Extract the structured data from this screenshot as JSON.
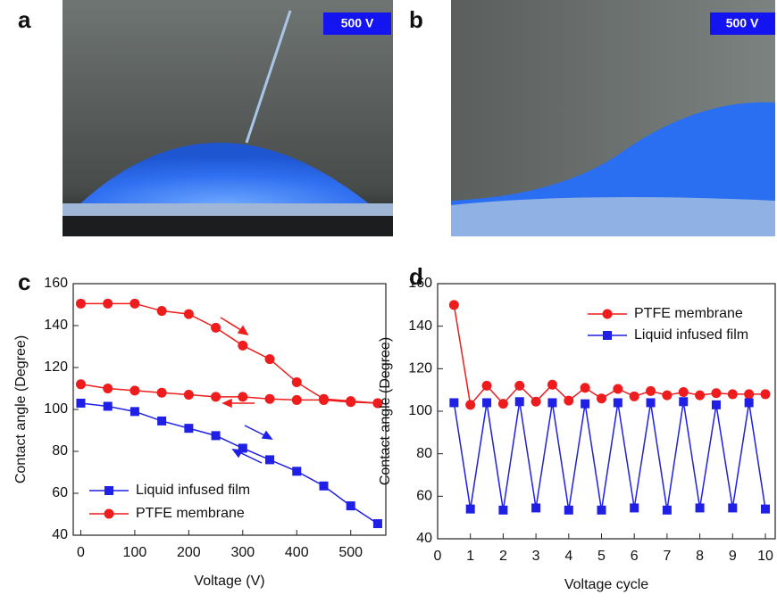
{
  "images": [
    {
      "label": "a",
      "badge": "500 V"
    },
    {
      "label": "b",
      "badge": "500 V"
    }
  ],
  "chart_data": [
    {
      "type": "line",
      "panel_label": "c",
      "x_label": "Voltage (V)",
      "y_label": "Contact angle (Degree)",
      "xlim": [
        -14,
        565
      ],
      "xticks": [
        0,
        100,
        200,
        300,
        400,
        500
      ],
      "ylim": [
        40,
        160
      ],
      "yticks": [
        40,
        60,
        80,
        100,
        120,
        140,
        160
      ],
      "legend": "lower left",
      "series": [
        {
          "name": "Liquid infused film",
          "color": "#1f1fe6",
          "marker": "square",
          "x": [
            0,
            50,
            100,
            150,
            200,
            250,
            300,
            350,
            400,
            450,
            500,
            550
          ],
          "values": [
            103,
            101.5,
            99,
            94.5,
            91,
            87.5,
            81.5,
            76,
            70.5,
            63.5,
            54,
            45.5
          ]
        },
        {
          "name": "PTFE membrane",
          "color": "#ee1c1c",
          "marker": "circle",
          "x": [
            0,
            50,
            100,
            150,
            200,
            250,
            300,
            350,
            400,
            450,
            500,
            550,
            550,
            500,
            450,
            400,
            350,
            300,
            250,
            200,
            150,
            100,
            50,
            0
          ],
          "values": [
            150.5,
            150.5,
            150.5,
            147,
            145.5,
            139,
            130.5,
            124,
            113,
            105,
            104,
            103,
            103,
            103.5,
            104.5,
            104.5,
            105,
            106,
            106,
            107,
            108,
            109,
            110,
            112
          ]
        }
      ]
    },
    {
      "type": "line",
      "panel_label": "d",
      "x_label": "Voltage cycle",
      "y_label": "Contact angle (Degree)",
      "xlim": [
        0,
        10.3
      ],
      "xticks": [
        0,
        1,
        2,
        3,
        4,
        5,
        6,
        7,
        8,
        9,
        10
      ],
      "ylim": [
        40,
        160
      ],
      "yticks": [
        40,
        60,
        80,
        100,
        120,
        140,
        160
      ],
      "legend": "upper right",
      "series": [
        {
          "name": "PTFE membrane",
          "color": "#ee1c1c",
          "marker": "circle",
          "x": [
            0.5,
            1,
            1.5,
            2,
            2.5,
            3,
            3.5,
            4,
            4.5,
            5,
            5.5,
            6,
            6.5,
            7,
            7.5,
            8,
            8.5,
            9,
            9.5,
            10
          ],
          "values": [
            150,
            103,
            112,
            103.5,
            112,
            104.5,
            112.5,
            105,
            111,
            106,
            110.5,
            107,
            109.5,
            107.5,
            109,
            107.5,
            108.5,
            108,
            108,
            108
          ]
        },
        {
          "name": "Liquid infused film",
          "color": "#1f1fe6",
          "marker": "square",
          "x": [
            0.5,
            1,
            1.5,
            2,
            2.5,
            3,
            3.5,
            4,
            4.5,
            5,
            5.5,
            6,
            6.5,
            7,
            7.5,
            8,
            8.5,
            9,
            9.5,
            10
          ],
          "values": [
            104,
            54,
            104,
            53.5,
            104.5,
            54.5,
            104,
            53.5,
            103.5,
            53.5,
            104,
            54.5,
            104,
            53.5,
            104.5,
            54.5,
            103,
            54.5,
            104,
            54
          ]
        }
      ]
    }
  ]
}
